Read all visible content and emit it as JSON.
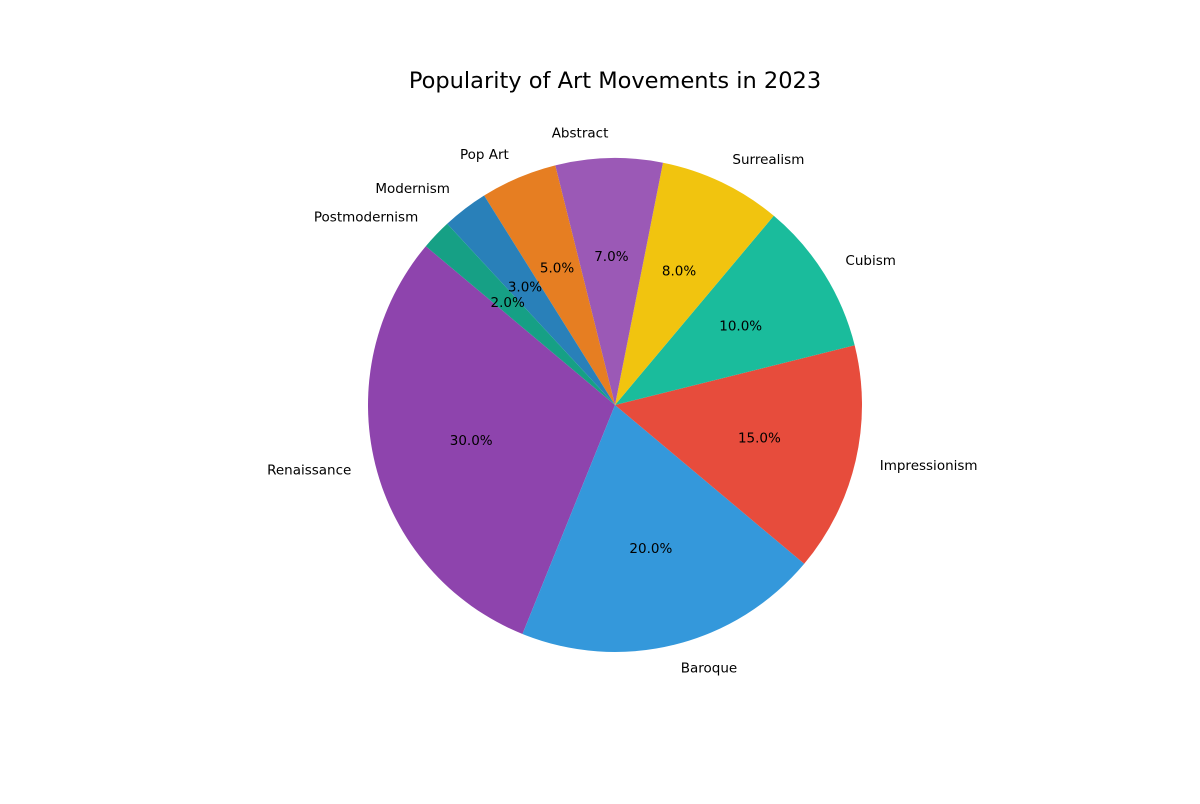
{
  "chart_data": {
    "type": "pie",
    "title": "Popularity of Art Movements in 2023",
    "start_angle_deg": 140,
    "direction": "counterclockwise",
    "slices": [
      {
        "label": "Renaissance",
        "value": 30.0,
        "pct_label": "30.0%",
        "color": "#8e44ad"
      },
      {
        "label": "Baroque",
        "value": 20.0,
        "pct_label": "20.0%",
        "color": "#3498db"
      },
      {
        "label": "Impressionism",
        "value": 15.0,
        "pct_label": "15.0%",
        "color": "#e74c3c"
      },
      {
        "label": "Cubism",
        "value": 10.0,
        "pct_label": "10.0%",
        "color": "#1abc9c"
      },
      {
        "label": "Surrealism",
        "value": 8.0,
        "pct_label": "8.0%",
        "color": "#f1c40f"
      },
      {
        "label": "Abstract",
        "value": 7.0,
        "pct_label": "7.0%",
        "color": "#9b59b6"
      },
      {
        "label": "Pop Art",
        "value": 5.0,
        "pct_label": "5.0%",
        "color": "#e67e22"
      },
      {
        "label": "Modernism",
        "value": 3.0,
        "pct_label": "3.0%",
        "color": "#2980b9"
      },
      {
        "label": "Postmodernism",
        "value": 2.0,
        "pct_label": "2.0%",
        "color": "#16a085"
      }
    ]
  }
}
